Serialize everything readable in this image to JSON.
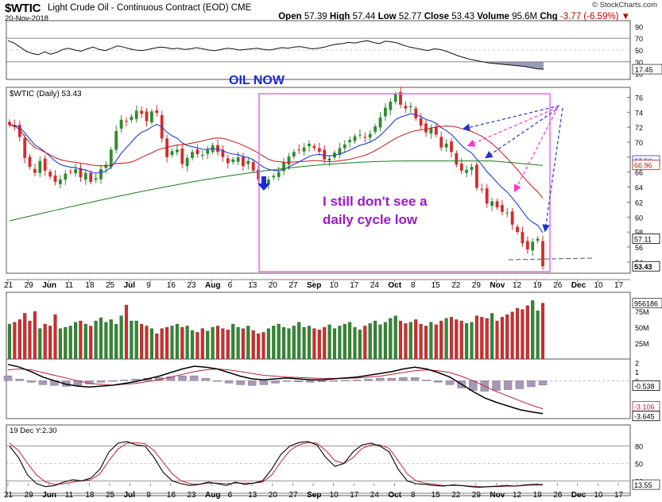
{
  "header": {
    "symbol": "$WTIC",
    "name": "Light Crude Oil - Continuous Contract (EOD)",
    "exchange": "CME",
    "date": "20-Nov-2018",
    "watermark": "© StockCharts.com",
    "open_label": "Open",
    "open": "57.39",
    "high_label": "High",
    "high": "57.44",
    "low_label": "Low",
    "low": "52.77",
    "close_label": "Close",
    "close": "53.43",
    "volume_label": "Volume",
    "volume": "95.6M",
    "chg_label": "Chg",
    "chg": "-3.77 (-6.59%)"
  },
  "colors": {
    "up": "#2e8b2e",
    "down": "#d62b2b",
    "ema_fast": "#1a3fd6",
    "sma50": "#c01818",
    "sma200": "#1a7a1a",
    "annotation": "#9b19c7",
    "box": "#ee66ee",
    "pink_arrow": "#ff33cc",
    "blue_arrow": "#2233cc",
    "histogram": "#a898b8"
  },
  "chart_data": [
    {
      "panel": "rsi",
      "type": "line",
      "yaxis_ticks": [
        "90",
        "70",
        "50",
        "30",
        "10"
      ],
      "last_label": "17.45",
      "values": [
        66,
        62,
        55,
        48,
        44,
        42,
        47,
        43,
        46,
        51,
        53,
        50,
        48,
        52,
        55,
        51,
        49,
        53,
        57,
        55,
        52,
        50,
        49,
        51,
        53,
        55,
        54,
        52,
        53,
        51,
        52,
        54,
        52,
        50,
        49,
        51,
        53,
        52,
        50,
        51,
        52,
        53,
        51,
        50,
        52,
        54,
        53,
        55,
        56,
        54,
        52,
        53,
        55,
        58,
        60,
        61,
        63,
        62,
        64,
        66,
        63,
        61,
        65,
        64,
        62,
        58,
        55,
        53,
        51,
        49,
        52,
        51,
        48,
        44,
        40,
        37,
        34,
        32,
        30,
        28,
        27,
        26,
        25,
        24,
        23,
        22,
        20,
        18,
        17.45
      ]
    },
    {
      "panel": "price",
      "type": "candlestick",
      "legend": "$WTIC (Daily) 53.43",
      "title_annotation": "OIL NOW",
      "annotation": [
        "I still don't see a",
        "daily cycle low"
      ],
      "yaxis_ticks": [
        "76",
        "74",
        "72",
        "70",
        "68",
        "66",
        "64",
        "62",
        "60",
        "58",
        "56",
        "54"
      ],
      "ylim": [
        52.5,
        77
      ],
      "price_labels": {
        "ema": "67.56",
        "sma50": "66.96",
        "last_close": "53.43",
        "mid": "57.11"
      },
      "x_ticks": [
        "21",
        "29",
        "Jun",
        "11",
        "18",
        "25",
        "Jul",
        "9",
        "16",
        "23",
        "Aug",
        "6",
        "13",
        "20",
        "27",
        "Sep",
        "10",
        "17",
        "24",
        "Oct",
        "8",
        "15",
        "22",
        "29",
        "Nov",
        "12",
        "19",
        "26",
        "Dec",
        "10",
        "17"
      ],
      "closes": [
        72.3,
        72.0,
        70.7,
        67.9,
        66.7,
        65.9,
        67.5,
        66.2,
        65.4,
        64.7,
        65.0,
        65.8,
        66.0,
        66.4,
        65.3,
        65.9,
        64.7,
        65.2,
        66.4,
        67.0,
        69.0,
        71.5,
        73.0,
        72.8,
        73.4,
        74.2,
        73.8,
        72.8,
        74.1,
        73.9,
        70.5,
        68.0,
        68.8,
        69.0,
        67.1,
        67.9,
        68.7,
        68.4,
        68.3,
        69.0,
        69.6,
        68.7,
        68.0,
        67.2,
        67.7,
        68.0,
        66.8,
        67.5,
        66.2,
        65.0,
        64.4,
        65.0,
        65.5,
        66.0,
        67.3,
        68.1,
        68.7,
        68.9,
        69.3,
        69.8,
        69.2,
        68.7,
        67.7,
        67.8,
        68.6,
        69.2,
        69.7,
        70.3,
        70.8,
        71.0,
        70.6,
        71.1,
        72.1,
        73.3,
        74.6,
        75.4,
        76.4,
        75.0,
        74.5,
        74.8,
        73.2,
        72.2,
        71.3,
        71.9,
        71.0,
        69.3,
        69.8,
        68.7,
        67.0,
        66.2,
        66.3,
        66.7,
        63.9,
        63.7,
        61.8,
        62.1,
        61.3,
        60.7,
        60.6,
        59.0,
        58.0,
        56.5,
        55.7,
        56.7,
        57.1,
        53.43
      ]
    },
    {
      "panel": "volume",
      "type": "bar",
      "yaxis_ticks": [
        "75M",
        "50M",
        "25M"
      ],
      "last_label": "956186",
      "values": [
        55,
        58,
        62,
        72,
        60,
        75,
        48,
        55,
        52,
        70,
        48,
        50,
        52,
        58,
        60,
        55,
        52,
        60,
        65,
        58,
        62,
        55,
        68,
        85,
        60,
        60,
        55,
        52,
        48,
        40,
        48,
        50,
        52,
        55,
        50,
        52,
        45,
        42,
        48,
        44,
        50,
        52,
        48,
        46,
        55,
        50,
        48,
        52,
        45,
        40,
        42,
        48,
        52,
        55,
        50,
        48,
        52,
        58,
        50,
        52,
        48,
        46,
        50,
        54,
        48,
        52,
        55,
        58,
        50,
        46,
        52,
        56,
        60,
        54,
        58,
        64,
        68,
        60,
        56,
        58,
        62,
        55,
        52,
        58,
        54,
        60,
        64,
        66,
        62,
        60,
        56,
        58,
        68,
        66,
        64,
        72,
        60,
        66,
        70,
        74,
        80,
        78,
        84,
        92,
        76,
        88
      ]
    },
    {
      "panel": "macd",
      "type": "line",
      "yaxis_ticks": [
        "2",
        "1",
        "0"
      ],
      "last_labels": [
        "-0.538",
        "-3.106",
        "-3.645"
      ],
      "macd": [
        1.8,
        1.5,
        1.0,
        0.4,
        0.0,
        -0.4,
        -0.6,
        -0.7,
        -0.6,
        -0.5,
        -0.3,
        -0.1,
        0.2,
        0.5,
        0.9,
        1.3,
        1.6,
        1.5,
        1.3,
        0.9,
        0.5,
        0.2,
        0.1,
        0.2,
        0.3,
        0.2,
        0.1,
        0.1,
        0.2,
        0.3,
        0.4,
        0.6,
        0.8,
        1.0,
        1.3,
        1.5,
        1.3,
        0.9,
        0.4,
        -0.4,
        -1.2,
        -1.9,
        -2.4,
        -2.8,
        -3.2,
        -3.45,
        -3.645
      ],
      "signal": [
        1.2,
        1.3,
        1.2,
        0.9,
        0.6,
        0.3,
        0.0,
        -0.3,
        -0.4,
        -0.5,
        -0.4,
        -0.3,
        -0.1,
        0.1,
        0.4,
        0.7,
        1.0,
        1.2,
        1.3,
        1.2,
        1.0,
        0.8,
        0.6,
        0.5,
        0.4,
        0.35,
        0.3,
        0.25,
        0.25,
        0.25,
        0.3,
        0.4,
        0.5,
        0.7,
        0.9,
        1.1,
        1.2,
        1.1,
        0.9,
        0.5,
        0.0,
        -0.6,
        -1.2,
        -1.7,
        -2.2,
        -2.7,
        -3.106
      ]
    },
    {
      "panel": "stochastic",
      "type": "line",
      "legend": "19 Dec Y:2.30",
      "yaxis_ticks": [
        "80",
        "50",
        "20"
      ],
      "last_label": "13.55",
      "k": [
        80,
        60,
        30,
        15,
        10,
        12,
        18,
        22,
        20,
        25,
        40,
        70,
        85,
        88,
        82,
        80,
        60,
        35,
        20,
        15,
        12,
        14,
        18,
        15,
        12,
        18,
        14,
        16,
        20,
        40,
        65,
        80,
        86,
        88,
        82,
        60,
        45,
        50,
        70,
        82,
        85,
        80,
        70,
        40,
        20,
        15,
        14,
        12,
        11,
        13,
        12,
        10,
        9,
        10,
        11,
        12,
        11,
        13,
        14,
        13.55
      ],
      "d": [
        85,
        72,
        50,
        30,
        18,
        14,
        15,
        18,
        20,
        22,
        32,
        55,
        75,
        85,
        86,
        84,
        72,
        52,
        32,
        20,
        15,
        14,
        16,
        16,
        15,
        16,
        16,
        16,
        18,
        30,
        52,
        72,
        82,
        86,
        85,
        72,
        55,
        50,
        60,
        76,
        82,
        82,
        76,
        55,
        32,
        20,
        16,
        14,
        12,
        12,
        12,
        11,
        10,
        10,
        10,
        11,
        11,
        12,
        13,
        13
      ]
    }
  ]
}
